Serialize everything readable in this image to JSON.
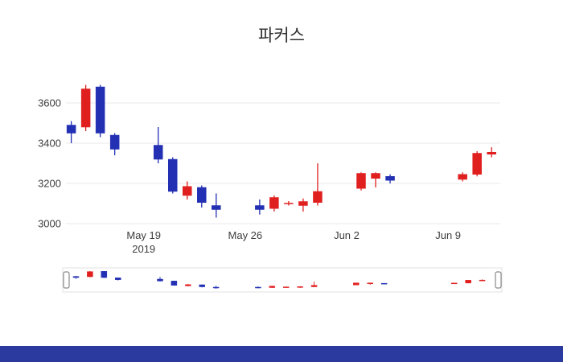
{
  "chart": {
    "title": "파커스"
  },
  "chart_data": {
    "type": "candlestick",
    "title": "파커스",
    "colors": {
      "increasing": "#e01f1f",
      "decreasing": "#2330b4",
      "grid": "#e8e8e8",
      "tick_text": "#3d3d3d",
      "slider_border": "#e2e2e2",
      "handle_border": "#8a8a8a"
    },
    "y_ticks": [
      3000,
      3200,
      3400,
      3600
    ],
    "x_ticks": [
      {
        "label": "May 19",
        "sublabel": "2019",
        "day": 6
      },
      {
        "label": "May 26",
        "sublabel": "",
        "day": 13
      },
      {
        "label": "Jun 2",
        "sublabel": "",
        "day": 20
      },
      {
        "label": "Jun 9",
        "sublabel": "",
        "day": 27
      }
    ],
    "x_range_days": [
      0.8,
      30.6
    ],
    "y_range": [
      2980,
      3760
    ],
    "grid": true,
    "legend": "none",
    "rangeslider": true,
    "candles": [
      {
        "date": "2019-05-14",
        "day": 1,
        "open": 3490,
        "high": 3510,
        "low": 3400,
        "close": 3450
      },
      {
        "date": "2019-05-15",
        "day": 2,
        "open": 3480,
        "high": 3690,
        "low": 3460,
        "close": 3670
      },
      {
        "date": "2019-05-16",
        "day": 3,
        "open": 3680,
        "high": 3690,
        "low": 3430,
        "close": 3450
      },
      {
        "date": "2019-05-17",
        "day": 4,
        "open": 3440,
        "high": 3450,
        "low": 3340,
        "close": 3370
      },
      {
        "date": "2019-05-20",
        "day": 7,
        "open": 3390,
        "high": 3480,
        "low": 3300,
        "close": 3320
      },
      {
        "date": "2019-05-21",
        "day": 8,
        "open": 3320,
        "high": 3330,
        "low": 3150,
        "close": 3160
      },
      {
        "date": "2019-05-22",
        "day": 9,
        "open": 3140,
        "high": 3210,
        "low": 3120,
        "close": 3185
      },
      {
        "date": "2019-05-23",
        "day": 10,
        "open": 3180,
        "high": 3190,
        "low": 3080,
        "close": 3105
      },
      {
        "date": "2019-05-24",
        "day": 11,
        "open": 3090,
        "high": 3150,
        "low": 3030,
        "close": 3070
      },
      {
        "date": "2019-05-27",
        "day": 14,
        "open": 3090,
        "high": 3120,
        "low": 3045,
        "close": 3070
      },
      {
        "date": "2019-05-28",
        "day": 15,
        "open": 3075,
        "high": 3140,
        "low": 3060,
        "close": 3130
      },
      {
        "date": "2019-05-29",
        "day": 16,
        "open": 3100,
        "high": 3112,
        "low": 3090,
        "close": 3102
      },
      {
        "date": "2019-05-30",
        "day": 17,
        "open": 3090,
        "high": 3125,
        "low": 3060,
        "close": 3110
      },
      {
        "date": "2019-05-31",
        "day": 18,
        "open": 3105,
        "high": 3300,
        "low": 3090,
        "close": 3160
      },
      {
        "date": "2019-06-03",
        "day": 21,
        "open": 3175,
        "high": 3255,
        "low": 3165,
        "close": 3250
      },
      {
        "date": "2019-06-04",
        "day": 22,
        "open": 3225,
        "high": 3255,
        "low": 3180,
        "close": 3250
      },
      {
        "date": "2019-06-05",
        "day": 23,
        "open": 3235,
        "high": 3245,
        "low": 3200,
        "close": 3215
      },
      {
        "date": "2019-06-10",
        "day": 28,
        "open": 3220,
        "high": 3255,
        "low": 3210,
        "close": 3245
      },
      {
        "date": "2019-06-11",
        "day": 29,
        "open": 3245,
        "high": 3360,
        "low": 3235,
        "close": 3350
      },
      {
        "date": "2019-06-12",
        "day": 30,
        "open": 3345,
        "high": 3380,
        "low": 3330,
        "close": 3355
      }
    ]
  },
  "footer": {
    "color": "#2b3a9f"
  }
}
